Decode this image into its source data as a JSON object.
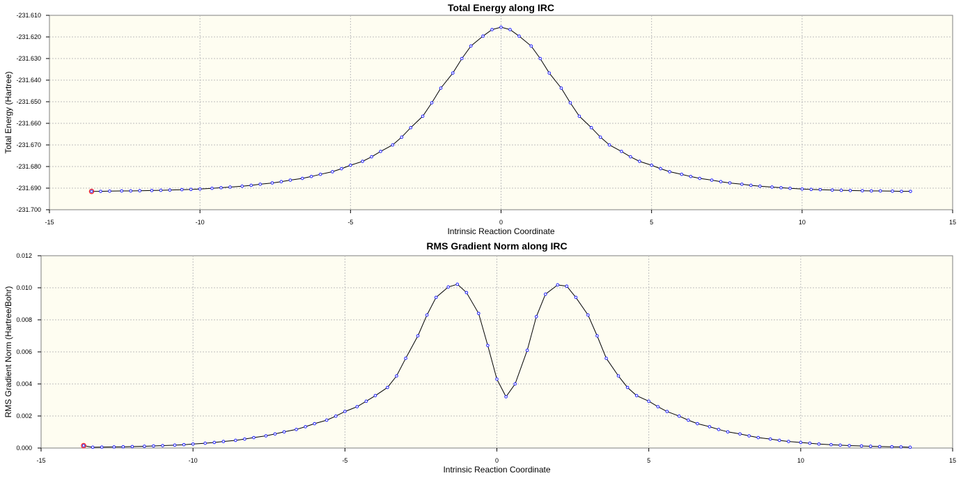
{
  "chart_data": [
    {
      "type": "line",
      "title": "Total Energy along IRC",
      "xlabel": "Intrinsic Reaction Coordinate",
      "ylabel": "Total Energy (Hartree)",
      "xlim": [
        -15,
        15
      ],
      "ylim": [
        -231.7,
        -231.61
      ],
      "xticks": [
        -15,
        -10,
        -5,
        0,
        5,
        10,
        15
      ],
      "xtick_labels": [
        "-15",
        "-10",
        "-5",
        "0",
        "5",
        "10",
        "15"
      ],
      "yticks": [
        -231.7,
        -231.69,
        -231.68,
        -231.67,
        -231.66,
        -231.65,
        -231.64,
        -231.63,
        -231.62,
        -231.61
      ],
      "ytick_labels": [
        "-231.700",
        "-231.690",
        "-231.680",
        "-231.670",
        "-231.660",
        "-231.650",
        "-231.640",
        "-231.630",
        "-231.620",
        "-231.610"
      ],
      "grid": true,
      "current_point": [
        -13.6,
        -231.6915
      ],
      "series": [
        {
          "x": [
            -13.6,
            -13.3,
            -13.0,
            -12.6,
            -12.3,
            -12.0,
            -11.6,
            -11.3,
            -11.0,
            -10.6,
            -10.3,
            -10.0,
            -9.6,
            -9.3,
            -9.0,
            -8.6,
            -8.3,
            -8.0,
            -7.6,
            -7.3,
            -7.0,
            -6.6,
            -6.3,
            -6.0,
            -5.6,
            -5.3,
            -5.0,
            -4.6,
            -4.3,
            -4.0,
            -3.6,
            -3.3,
            -3.0,
            -2.6,
            -2.3,
            -2.0,
            -1.6,
            -1.3,
            -1.0,
            -0.6,
            -0.3,
            0.0,
            0.3,
            0.6,
            1.0,
            1.3,
            1.6,
            2.0,
            2.3,
            2.6,
            3.0,
            3.3,
            3.6,
            4.0,
            4.3,
            4.6,
            5.0,
            5.3,
            5.6,
            6.0,
            6.3,
            6.6,
            7.0,
            7.3,
            7.6,
            8.0,
            8.3,
            8.6,
            9.0,
            9.3,
            9.6,
            10.0,
            10.3,
            10.6,
            11.0,
            11.3,
            11.6,
            12.0,
            12.3,
            12.6,
            13.0,
            13.3,
            13.6
          ],
          "y": [
            -231.6915,
            -231.6915,
            -231.6914,
            -231.6913,
            -231.6913,
            -231.6912,
            -231.6911,
            -231.691,
            -231.6909,
            -231.6907,
            -231.6906,
            -231.6904,
            -231.6901,
            -231.6898,
            -231.6895,
            -231.6891,
            -231.6887,
            -231.6882,
            -231.6876,
            -231.687,
            -231.6863,
            -231.6855,
            -231.6846,
            -231.6836,
            -231.6824,
            -231.681,
            -231.6794,
            -231.6776,
            -231.6755,
            -231.673,
            -231.67,
            -231.6664,
            -231.662,
            -231.6567,
            -231.6505,
            -231.6437,
            -231.6367,
            -231.63,
            -231.6242,
            -231.6196,
            -231.6166,
            -231.6155,
            -231.6166,
            -231.6196,
            -231.6242,
            -231.63,
            -231.6367,
            -231.6437,
            -231.6505,
            -231.6567,
            -231.662,
            -231.6664,
            -231.67,
            -231.673,
            -231.6755,
            -231.6776,
            -231.6794,
            -231.681,
            -231.6824,
            -231.6836,
            -231.6846,
            -231.6855,
            -231.6863,
            -231.687,
            -231.6876,
            -231.6882,
            -231.6887,
            -231.6891,
            -231.6895,
            -231.6898,
            -231.6901,
            -231.6904,
            -231.6906,
            -231.6907,
            -231.6909,
            -231.691,
            -231.6911,
            -231.6912,
            -231.6913,
            -231.6913,
            -231.6914,
            -231.6915,
            -231.6915
          ]
        }
      ]
    },
    {
      "type": "line",
      "title": "RMS Gradient Norm along IRC",
      "xlabel": "Intrinsic Reaction Coordinate",
      "ylabel": "RMS Gradient Norm (Hartree/Bohr)",
      "xlim": [
        -15,
        15
      ],
      "ylim": [
        0.0,
        0.012
      ],
      "xticks": [
        -15,
        -10,
        -5,
        0,
        5,
        10,
        15
      ],
      "xtick_labels": [
        "-15",
        "-10",
        "-5",
        "0",
        "5",
        "10",
        "15"
      ],
      "yticks": [
        0.0,
        0.002,
        0.004,
        0.006,
        0.008,
        0.01,
        0.012
      ],
      "ytick_labels": [
        "0.000",
        "0.002",
        "0.004",
        "0.006",
        "0.008",
        "0.010",
        "0.012"
      ],
      "grid": true,
      "current_point": [
        -13.6,
        0.00015
      ],
      "series": [
        {
          "x": [
            -13.6,
            -13.3,
            -13.0,
            -12.6,
            -12.3,
            -12.0,
            -11.6,
            -11.3,
            -11.0,
            -10.6,
            -10.3,
            -10.0,
            -9.6,
            -9.3,
            -9.0,
            -8.6,
            -8.3,
            -8.0,
            -7.6,
            -7.3,
            -7.0,
            -6.6,
            -6.3,
            -6.0,
            -5.6,
            -5.3,
            -5.0,
            -4.6,
            -4.3,
            -4.0,
            -3.6,
            -3.3,
            -3.0,
            -2.6,
            -2.3,
            -2.0,
            -1.6,
            -1.3,
            -1.0,
            -0.6,
            -0.3,
            0.0,
            0.3,
            0.6,
            1.0,
            1.3,
            1.6,
            2.0,
            2.3,
            2.6,
            3.0,
            3.3,
            3.6,
            4.0,
            4.3,
            4.6,
            5.0,
            5.3,
            5.6,
            6.0,
            6.3,
            6.6,
            7.0,
            7.3,
            7.6,
            8.0,
            8.3,
            8.6,
            9.0,
            9.3,
            9.6,
            10.0,
            10.3,
            10.6,
            11.0,
            11.3,
            11.6,
            12.0,
            12.3,
            12.6,
            13.0,
            13.3,
            13.6
          ],
          "y": [
            0.00015,
            5e-05,
            6e-05,
            7e-05,
            8e-05,
            9e-05,
            0.00011,
            0.00013,
            0.00015,
            0.00018,
            0.00021,
            0.00025,
            0.0003,
            0.00035,
            0.00041,
            0.00048,
            0.00056,
            0.00065,
            0.00076,
            0.00088,
            0.00101,
            0.00116,
            0.00133,
            0.00152,
            0.00174,
            0.00199,
            0.00228,
            0.00258,
            0.00292,
            0.00327,
            0.00378,
            0.0045,
            0.0056,
            0.007,
            0.0083,
            0.0094,
            0.01005,
            0.01022,
            0.0097,
            0.0084,
            0.0064,
            0.0043,
            0.0032,
            0.004,
            0.0061,
            0.0082,
            0.0096,
            0.01018,
            0.0101,
            0.0094,
            0.0083,
            0.007,
            0.0056,
            0.0045,
            0.00378,
            0.00327,
            0.00292,
            0.00258,
            0.00228,
            0.00199,
            0.00174,
            0.00152,
            0.00133,
            0.00116,
            0.00101,
            0.00088,
            0.00076,
            0.00065,
            0.00056,
            0.00048,
            0.00041,
            0.00035,
            0.0003,
            0.00025,
            0.00021,
            0.00018,
            0.00015,
            0.00013,
            0.00011,
            9e-05,
            8e-05,
            7e-05,
            5e-05
          ]
        }
      ]
    }
  ]
}
